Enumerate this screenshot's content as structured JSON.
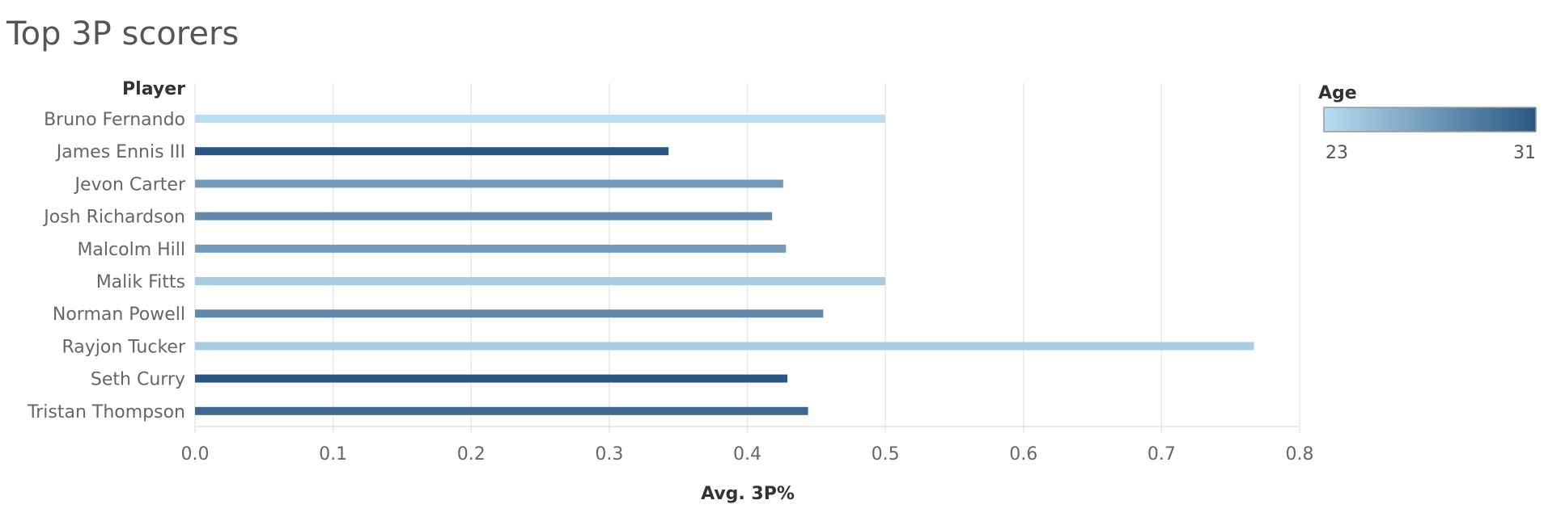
{
  "chart_data": {
    "type": "bar",
    "orientation": "horizontal",
    "title": "Top 3P scorers",
    "xlabel": "Avg. 3P%",
    "ylabel": "Player",
    "xlim": [
      0,
      0.8
    ],
    "xticks": [
      "0.0",
      "0.1",
      "0.2",
      "0.3",
      "0.4",
      "0.5",
      "0.6",
      "0.7",
      "0.8"
    ],
    "grid": true,
    "categories": [
      "Bruno Fernando",
      "James Ennis III",
      "Jevon Carter",
      "Josh Richardson",
      "Malcolm Hill",
      "Malik Fitts",
      "Norman Powell",
      "Rayjon Tucker",
      "Seth Curry",
      "Tristan Thompson"
    ],
    "values": [
      0.5,
      0.343,
      0.426,
      0.418,
      0.428,
      0.5,
      0.455,
      0.767,
      0.429,
      0.444
    ],
    "color_by": {
      "name": "Age",
      "min": 23,
      "max": 31,
      "min_label": "23",
      "max_label": "31",
      "min_color": "#b9ddf1",
      "max_color": "#2a5783",
      "values": [
        23,
        31,
        27,
        28,
        27,
        24,
        28,
        24,
        31,
        30
      ]
    },
    "legend": {
      "title": "Age",
      "position": "top-right"
    }
  }
}
